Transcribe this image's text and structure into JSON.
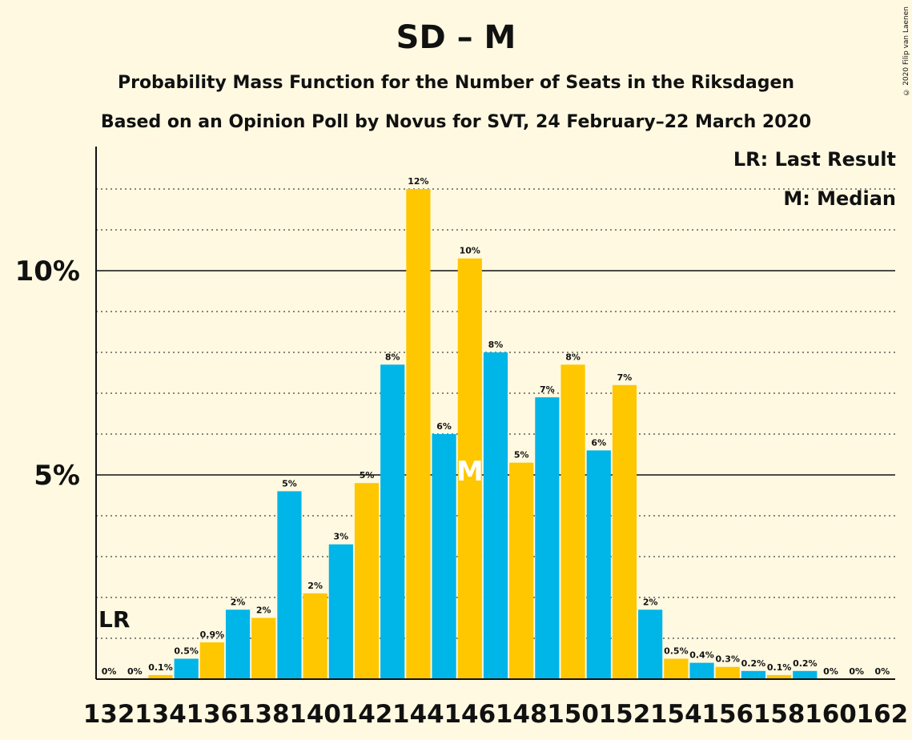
{
  "header": {
    "title": "SD – M",
    "subtitle": "Probability Mass Function for the Number of Seats in the Riksdagen",
    "subtitle2": "Based on an Opinion Poll by Novus for SVT, 24 February–22 March 2020",
    "copyright": "© 2020 Filip van Laenen"
  },
  "legend": {
    "last_result": "LR: Last Result",
    "median": "M: Median"
  },
  "colors": {
    "background": "#FFF9E1",
    "bar_a": "#00B5E8",
    "bar_b": "#FFC700",
    "axis": "#111111"
  },
  "chart_data": {
    "type": "bar",
    "title": "SD – M",
    "xlabel": "",
    "ylabel": "",
    "ylim": [
      0,
      13
    ],
    "x": [
      132,
      133,
      134,
      135,
      136,
      137,
      138,
      139,
      140,
      141,
      142,
      143,
      144,
      145,
      146,
      147,
      148,
      149,
      150,
      151,
      152,
      153,
      154,
      155,
      156,
      157,
      158,
      159,
      160,
      161,
      162
    ],
    "values": [
      0,
      0,
      0.1,
      0.5,
      0.9,
      1.7,
      1.5,
      4.6,
      2.1,
      3.3,
      4.8,
      7.7,
      12.0,
      6.0,
      10.3,
      8.0,
      5.3,
      6.9,
      7.7,
      5.6,
      7.2,
      1.7,
      0.5,
      0.4,
      0.3,
      0.2,
      0.1,
      0.2,
      0,
      0,
      0
    ],
    "labels": [
      "0%",
      "0%",
      "0.1%",
      "0.5%",
      "0.9%",
      "2%",
      "2%",
      "5%",
      "2%",
      "3%",
      "5%",
      "8%",
      "12%",
      "6%",
      "10%",
      "8%",
      "5%",
      "7%",
      "8%",
      "6%",
      "7%",
      "2%",
      "0.5%",
      "0.4%",
      "0.3%",
      "0.2%",
      "0.1%",
      "0.2%",
      "0%",
      "0%",
      "0%"
    ],
    "x_tick_labels": [
      "132",
      "134",
      "136",
      "138",
      "140",
      "142",
      "144",
      "146",
      "148",
      "150",
      "152",
      "154",
      "156",
      "158",
      "160",
      "162"
    ],
    "y_tick_labels": [
      {
        "value": 5,
        "label": "5%"
      },
      {
        "value": 10,
        "label": "10%"
      }
    ],
    "last_result": {
      "seat": 132,
      "marker": "LR"
    },
    "median": {
      "seat": 146,
      "marker": "M"
    },
    "grid": "dotted every 1%, solid at 5% and 10%"
  }
}
